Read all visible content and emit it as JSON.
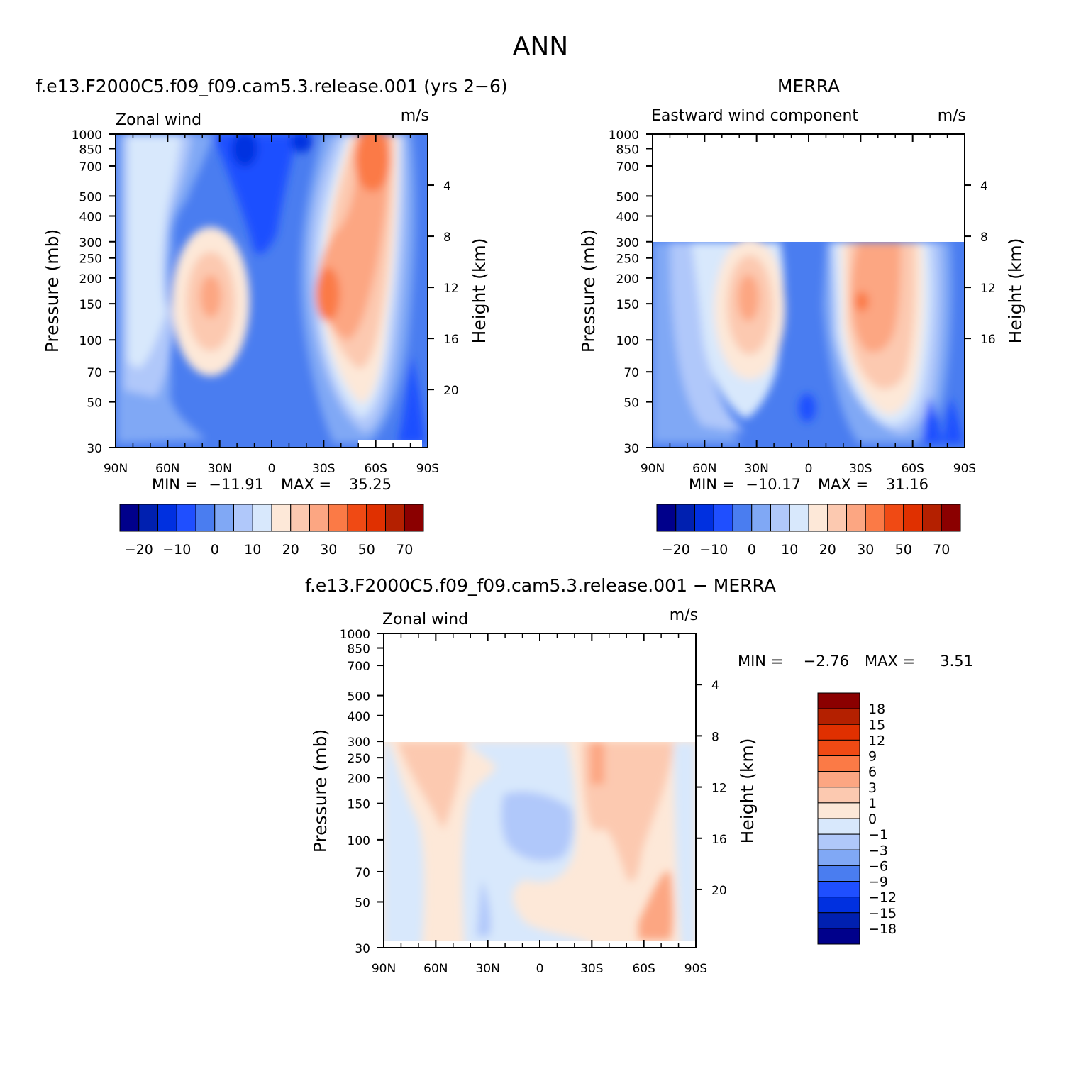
{
  "figure": {
    "title": "ANN",
    "panel_titles": {
      "model": "f.e13.F2000C5.f09_f09.cam5.3.release.001 (yrs 2−6)",
      "obs": "MERRA",
      "diff": "f.e13.F2000C5.f09_f09.cam5.3.release.001 − MERRA"
    }
  },
  "chart_data": [
    {
      "id": "model",
      "type": "heatmap",
      "variable_label": "Zonal wind",
      "units": "m/s",
      "ylabel": "Pressure (mb)",
      "y2label": "Height (km)",
      "x_ticks": [
        "90N",
        "60N",
        "30N",
        "0",
        "30S",
        "60S",
        "90S"
      ],
      "y_ticks": [
        "30",
        "50",
        "70",
        "100",
        "150",
        "200",
        "250",
        "300",
        "400",
        "500",
        "700",
        "850",
        "1000"
      ],
      "y2_ticks": [
        "20",
        "16",
        "12",
        "8",
        "4"
      ],
      "ylim": [
        1000,
        30
      ],
      "stats": {
        "min_label": "MIN =",
        "min": "−11.91",
        "max_label": "MAX =",
        "max": "35.25"
      },
      "colorbar": {
        "colors": [
          "#00008b",
          "#0020b0",
          "#0030e0",
          "#1f4fff",
          "#4a7df0",
          "#80a8f5",
          "#b0c8fa",
          "#d8e8fc",
          "#fde8d8",
          "#fcc9b0",
          "#fca682",
          "#fb7a46",
          "#f04a14",
          "#e03000",
          "#b42000",
          "#8b0000"
        ],
        "labels": [
          "−20",
          "−10",
          "0",
          "10",
          "20",
          "30",
          "50",
          "70"
        ]
      }
    },
    {
      "id": "obs",
      "type": "heatmap",
      "variable_label": "Eastward wind component",
      "units": "m/s",
      "ylabel": "Pressure (mb)",
      "y2label": "Height (km)",
      "x_ticks": [
        "90N",
        "60N",
        "30N",
        "0",
        "30S",
        "60S",
        "90S"
      ],
      "y_ticks": [
        "30",
        "50",
        "70",
        "100",
        "150",
        "200",
        "250",
        "300",
        "400",
        "500",
        "700",
        "850",
        "1000"
      ],
      "y2_ticks": [
        "16",
        "12",
        "8",
        "4"
      ],
      "ylim": [
        1000,
        30
      ],
      "data_top_mb": 100,
      "stats": {
        "min_label": "MIN =",
        "min": "−10.17",
        "max_label": "MAX =",
        "max": "31.16"
      },
      "colorbar": {
        "colors": [
          "#00008b",
          "#0020b0",
          "#0030e0",
          "#1f4fff",
          "#4a7df0",
          "#80a8f5",
          "#b0c8fa",
          "#d8e8fc",
          "#fde8d8",
          "#fcc9b0",
          "#fca682",
          "#fb7a46",
          "#f04a14",
          "#e03000",
          "#b42000",
          "#8b0000"
        ],
        "labels": [
          "−20",
          "−10",
          "0",
          "10",
          "20",
          "30",
          "50",
          "70"
        ]
      }
    },
    {
      "id": "diff",
      "type": "heatmap",
      "variable_label": "Zonal wind",
      "units": "m/s",
      "ylabel": "Pressure (mb)",
      "y2label": "Height (km)",
      "x_ticks": [
        "90N",
        "60N",
        "30N",
        "0",
        "30S",
        "60S",
        "90S"
      ],
      "y_ticks": [
        "30",
        "50",
        "70",
        "100",
        "150",
        "200",
        "250",
        "300",
        "400",
        "500",
        "700",
        "850",
        "1000"
      ],
      "y2_ticks": [
        "20",
        "16",
        "12",
        "8",
        "4"
      ],
      "ylim": [
        1000,
        30
      ],
      "data_top_mb": 100,
      "stats": {
        "min_label": "MIN =",
        "min": "−2.76",
        "max_label": "MAX =",
        "max": "3.51"
      },
      "colorbar": {
        "colors": [
          "#00008b",
          "#0020b0",
          "#0030e0",
          "#1f4fff",
          "#4a7df0",
          "#80a8f5",
          "#b0c8fa",
          "#d8e8fc",
          "#fde8d8",
          "#fcc9b0",
          "#fca682",
          "#fb7a46",
          "#f04a14",
          "#e03000",
          "#b42000",
          "#8b0000"
        ],
        "labels": [
          "18",
          "15",
          "12",
          "9",
          "6",
          "3",
          "1",
          "0",
          "−1",
          "−3",
          "−6",
          "−9",
          "−12",
          "−15",
          "−18"
        ]
      }
    }
  ]
}
